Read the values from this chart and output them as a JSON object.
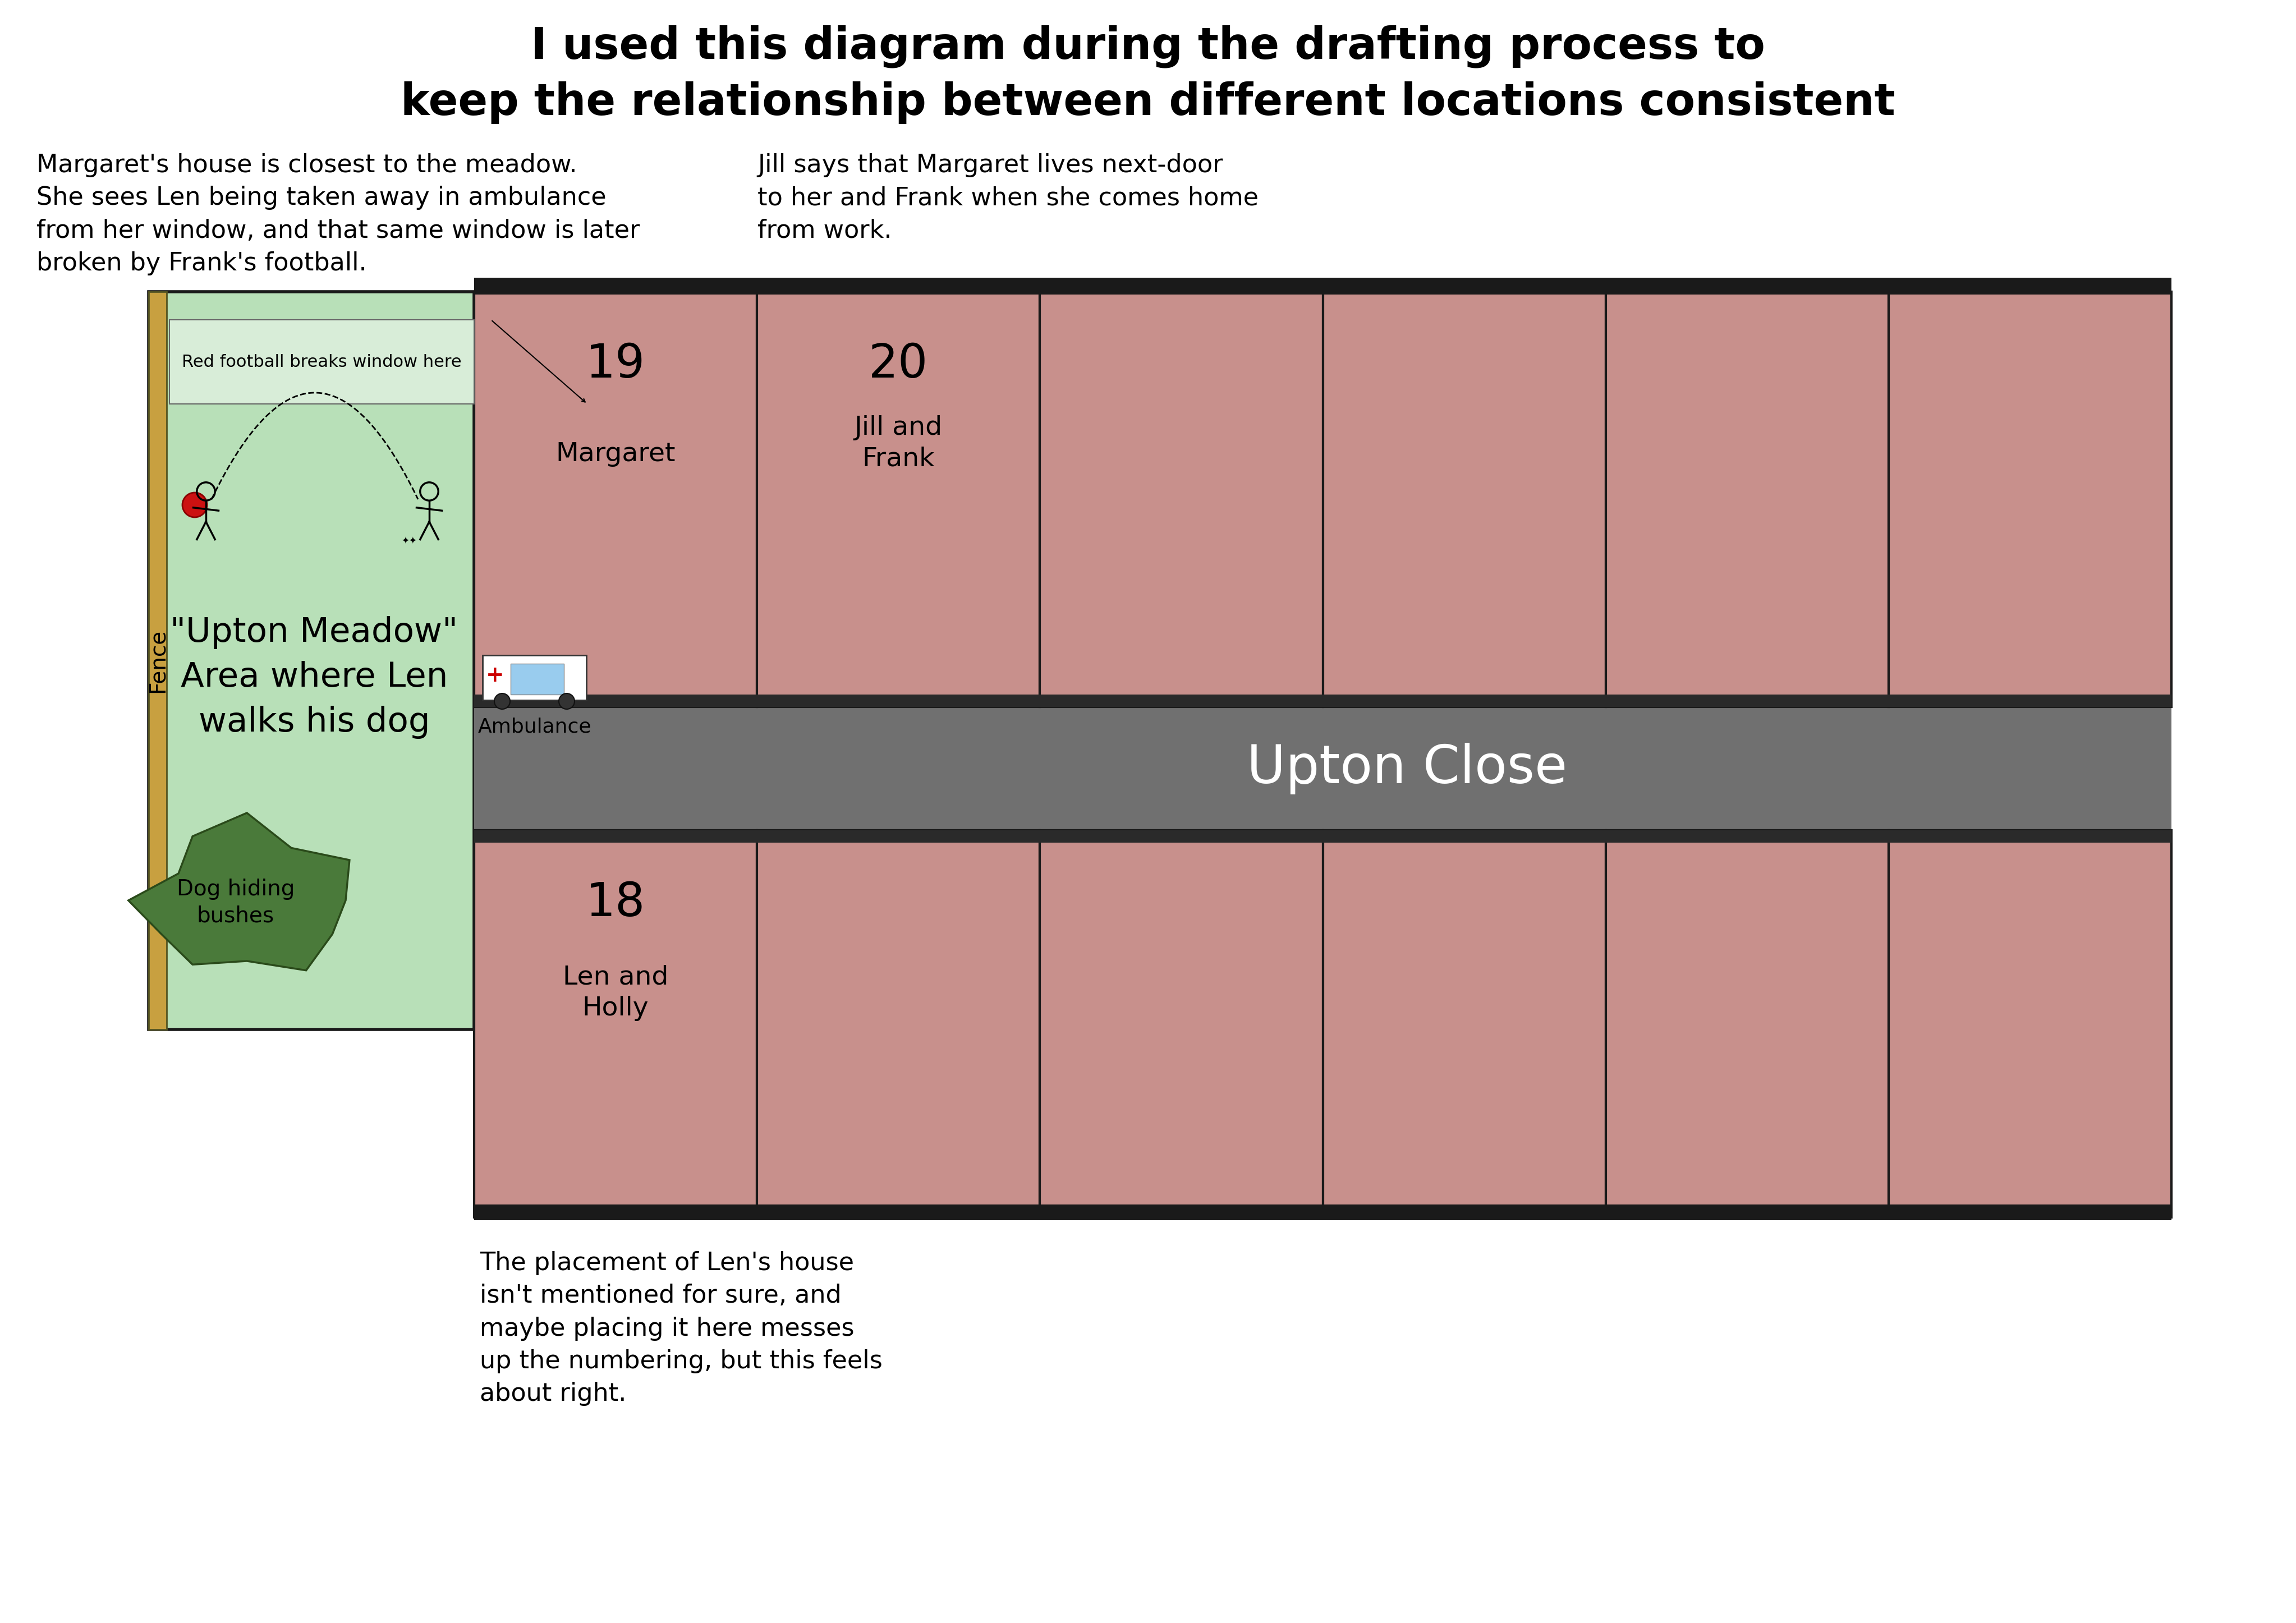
{
  "title_line1": "I used this diagram during the drafting process to",
  "title_line2": "keep the relationship between different locations consistent",
  "bg_color": "#ffffff",
  "meadow_color": "#b8e0b8",
  "meadow_border": "#1a1a1a",
  "house_color": "#c8908c",
  "house_border": "#1a1a1a",
  "road_color": "#707070",
  "fence_color": "#c8a040",
  "fence_border": "#555522",
  "bush_color": "#4a7a3a",
  "bush_border": "#2a4a1a",
  "football_color": "#cc1111",
  "ambulance_body": "#ffffff",
  "ambulance_window": "#99ccee",
  "note_margaret": "Margaret's house is closest to the meadow.\nShe sees Len being taken away in ambulance\nfrom her window, and that same window is later\nbroken by Frank's football.",
  "note_jill": "Jill says that Margaret lives next-door\nto her and Frank when she comes home\nfrom work.",
  "note_len": "The placement of Len's house\nisn't mentioned for sure, and\nmaybe placing it here messes\nup the numbering, but this feels\nabout right.",
  "road_label": "Upton Close",
  "meadow_label_1": "\"Upton Meadow\"",
  "meadow_label_2": "Area where Len",
  "meadow_label_3": "walks his dog",
  "fence_label": "Fence",
  "football_label": "Red football breaks window here",
  "ambulance_label": "Ambulance",
  "dog_bush_label_1": "Dog hiding",
  "dog_bush_label_2": "bushes",
  "num_houses": 6,
  "title_fontsize": 56,
  "annotation_fontsize": 32,
  "house_number_fontsize": 60,
  "house_name_fontsize": 34,
  "road_fontsize": 68,
  "meadow_fontsize": 44
}
